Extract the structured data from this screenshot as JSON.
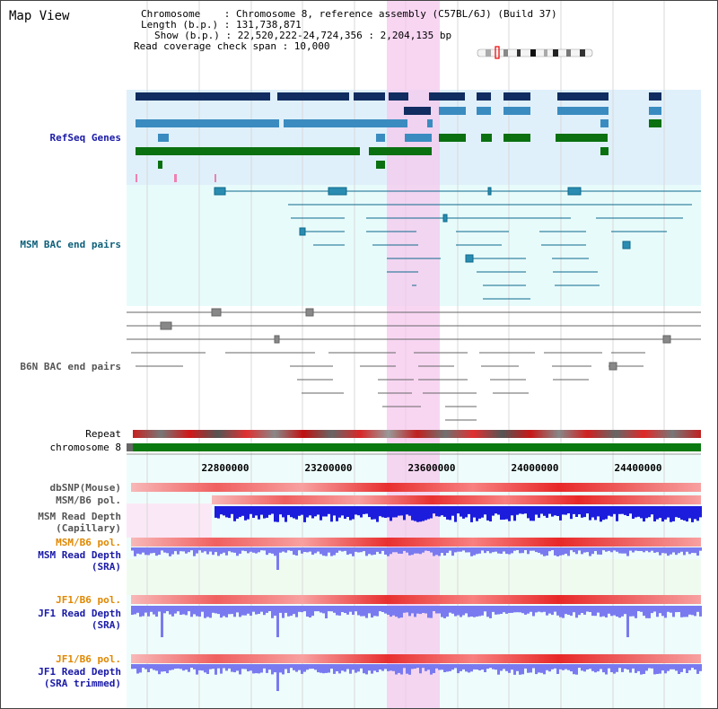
{
  "title": "Map View",
  "info": {
    "chromosome": "Chromosome    : Chromosome 8, reference assembly (C57BL/6J) (Build 37)",
    "length": "Length (b.p.) : 131,738,871",
    "show": "Show (b.p.) : 22,520,222-24,724,356 : 2,204,135 bp",
    "coverage": "Read coverage check span : 10,000"
  },
  "tracks": {
    "refseq": "RefSeq Genes",
    "msm_bac": "MSM BAC end pairs",
    "b6n_bac": "B6N BAC end pairs",
    "repeat": "Repeat",
    "chromosome": "chromosome 8",
    "dbsnp": "dbSNP(Mouse)",
    "msm_b6_pol_1": "MSM/B6 pol.",
    "msm_read_depth_cap_1": "MSM Read Depth",
    "msm_read_depth_cap_2": "(Capillary)",
    "msm_b6_pol_2": "MSM/B6 pol.",
    "msm_read_depth_sra_1": "MSM Read Depth",
    "msm_read_depth_sra_2": "(SRA)",
    "jf1_b6_pol_1": "JF1/B6 pol.",
    "jf1_read_depth_sra_1": "JF1 Read Depth",
    "jf1_read_depth_sra_2": "(SRA)",
    "jf1_b6_pol_2": "JF1/B6 pol.",
    "jf1_read_depth_trim_1": "JF1 Read Depth",
    "jf1_read_depth_trim_2": "(SRA trimmed)"
  },
  "axis": {
    "ticks": [
      "22800000",
      "23200000",
      "23600000",
      "24000000",
      "24400000"
    ]
  },
  "colors": {
    "refseq_bg": "#dff0fb",
    "bac_bg": "#e8fbfb",
    "highlight": "#f6d6f0",
    "gene_dark": "#102c60",
    "gene_mid": "#3a8cc0",
    "gene_green": "#0a7010",
    "bac_teal": "#0d6a8c",
    "bac_gray": "#666666",
    "chrom_green": "#0a7a10",
    "depth_blue": "#1c1cdc",
    "depth_light": "#7a7af0"
  }
}
